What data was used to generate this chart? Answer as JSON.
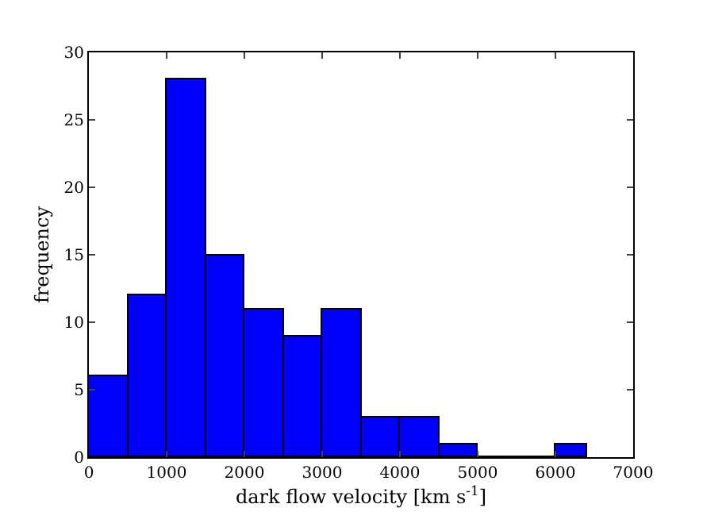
{
  "chart_data": {
    "type": "histogram",
    "xlabel": "dark flow velocity [km s$^{-1}$]",
    "ylabel": "frequency",
    "bins": [
      0,
      500,
      1000,
      1500,
      2000,
      2500,
      3000,
      3500,
      4000,
      4500,
      5000,
      6000,
      6400
    ],
    "values": [
      6,
      12,
      28,
      15,
      11,
      9,
      11,
      3,
      3,
      1,
      0,
      1
    ],
    "color": "#0000ff",
    "xlim": [
      0,
      7000
    ],
    "xticks": [
      0,
      1000,
      2000,
      3000,
      4000,
      5000,
      6000,
      7000
    ],
    "ylim": [
      0,
      30
    ],
    "yticks": [
      0,
      5,
      10,
      15,
      20,
      25,
      30
    ]
  }
}
